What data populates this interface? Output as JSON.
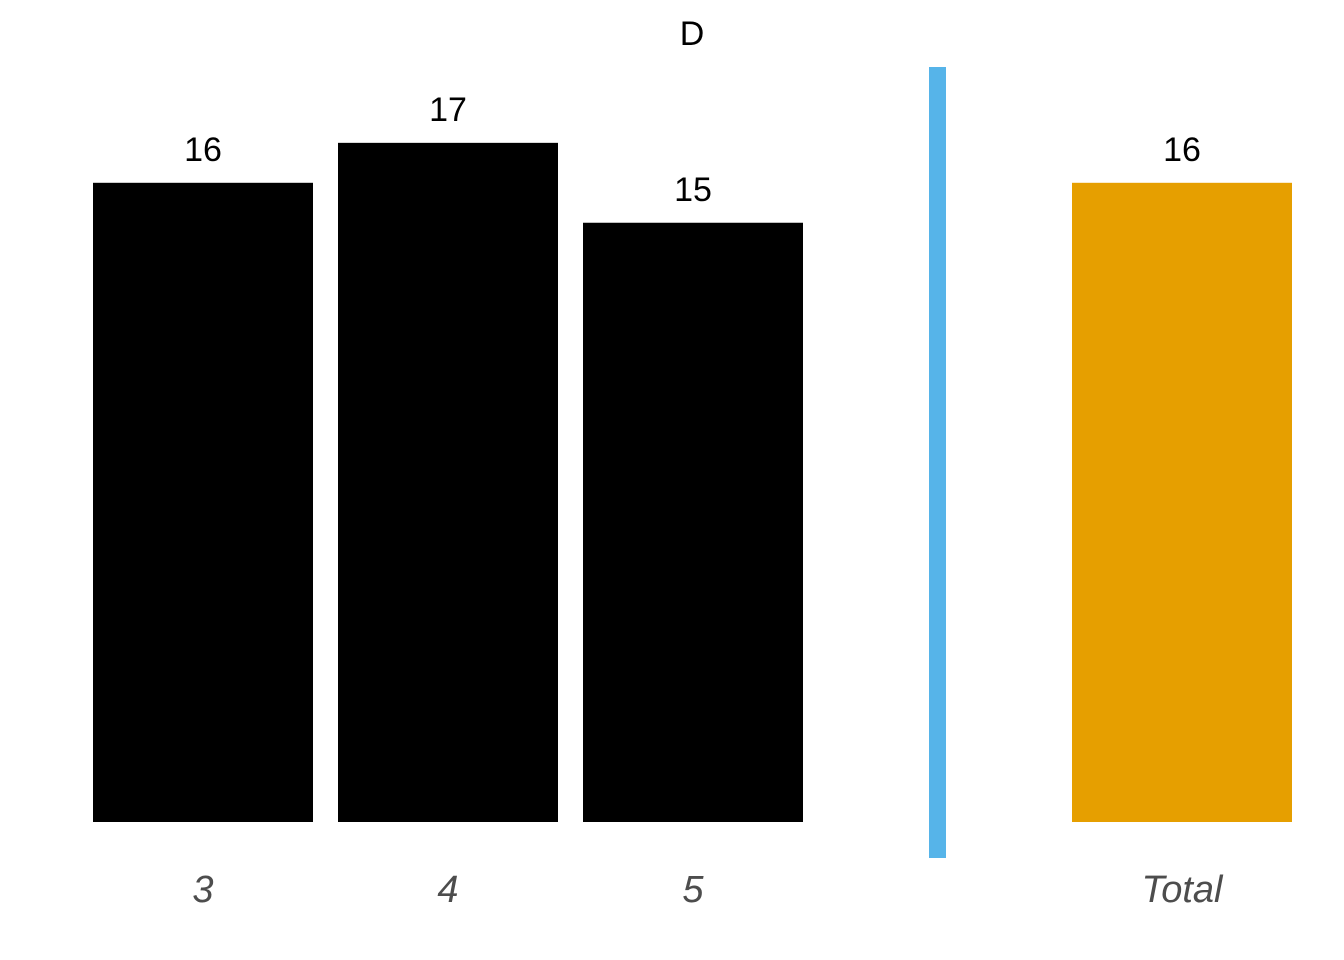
{
  "chart_data": {
    "type": "bar",
    "title": "D",
    "xlabel": "",
    "ylabel": "",
    "categories": [
      "3",
      "4",
      "5",
      "Total"
    ],
    "values": [
      16,
      17,
      15,
      16
    ],
    "ylim": [
      0,
      17
    ],
    "grid": false,
    "legend": "none",
    "annotations": [
      "separator line between category 5 and Total"
    ]
  },
  "colors": {
    "bar": "#000000",
    "total_bar": "#e69f00",
    "separator": "#56b4e9",
    "tick_text": "#4d4d4d",
    "label_text": "#000000"
  }
}
